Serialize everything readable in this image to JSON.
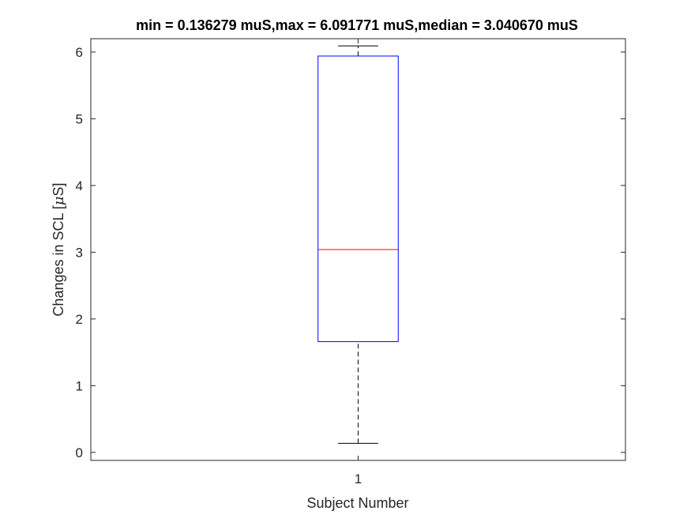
{
  "chart_data": {
    "type": "box",
    "title": "min = 0.136279 muS,max = 6.091771 muS,median = 3.040670 muS",
    "xlabel": "Subject Number",
    "ylabel_prefix": "Changes in SCL [",
    "ylabel_mu": "μ",
    "ylabel_suffix": "S]",
    "categories": [
      "1"
    ],
    "ylim": [
      -0.12,
      6.2
    ],
    "yticks": [
      0,
      1,
      2,
      3,
      4,
      5,
      6
    ],
    "boxes": [
      {
        "category": "1",
        "whisker_low": 0.136279,
        "q1": 1.66,
        "median": 3.04067,
        "q3": 5.94,
        "whisker_high": 6.091771
      }
    ],
    "grid": false,
    "colors": {
      "box": "#0000ff",
      "median": "#ff0000",
      "whisker": "#000000",
      "axes": "#262626"
    }
  }
}
